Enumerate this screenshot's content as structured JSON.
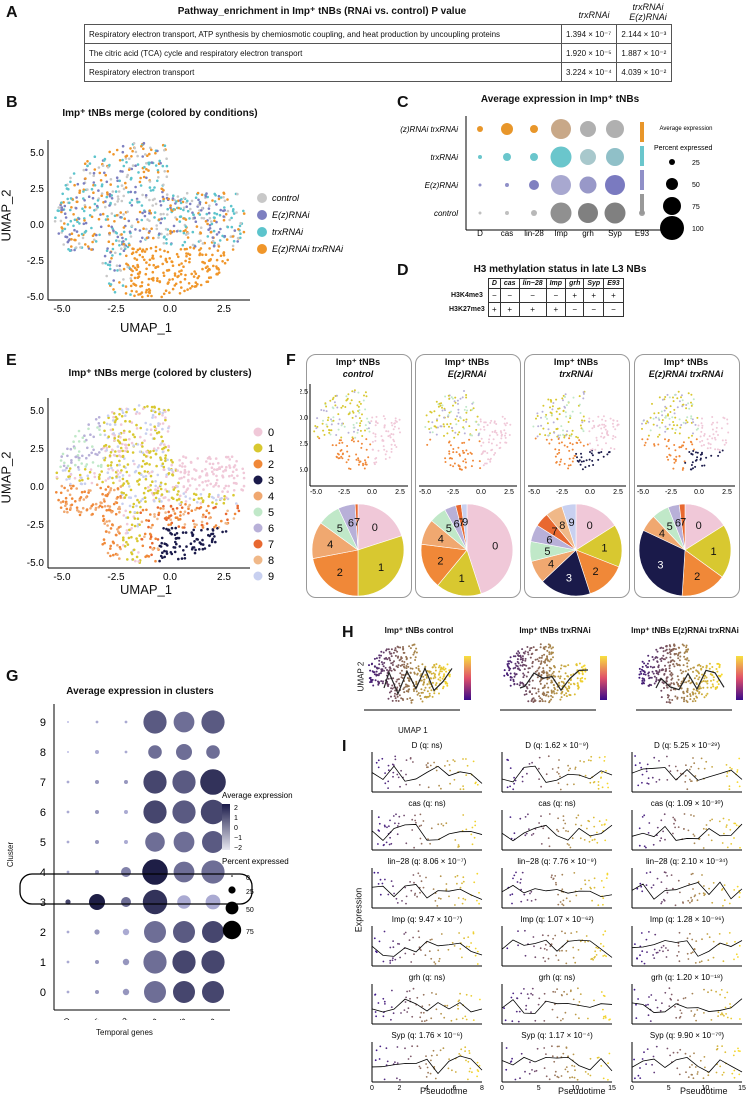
{
  "panels": {
    "a": "A",
    "b": "B",
    "c": "C",
    "d": "D",
    "e": "E",
    "f": "F",
    "g": "G",
    "h": "H",
    "i": "I"
  },
  "panelA": {
    "header_col1": "Pathway_enrichment in Imp⁺ tNBs (RNAi vs. control) P value",
    "header_col2": "trxRNAi",
    "header_col3": "trxRNAi E(z)RNAi",
    "rows": [
      {
        "pathway": "Respiratory electron transport, ATP synthesis by chemiosmotic coupling, and heat production by uncoupling proteins",
        "trx": "1.394 × 10⁻⁷",
        "trxez": "2.144 × 10⁻³"
      },
      {
        "pathway": "The citric acid (TCA) cycle and respiratory electron transport",
        "trx": "1.920 × 10⁻⁵",
        "trxez": "1.887 × 10⁻²"
      },
      {
        "pathway": "Respiratory electron transport",
        "trx": "3.224 × 10⁻⁴",
        "trxez": "4.039 × 10⁻²"
      }
    ]
  },
  "panelB": {
    "title": "Imp⁺ tNBs merge (colored by conditions)",
    "xlabel": "UMAP_1",
    "ylabel": "UMAP_2",
    "xticks": [
      "-5.0",
      "-2.5",
      "0.0",
      "2.5"
    ],
    "yticks": [
      "5.0",
      "2.5",
      "0.0",
      "-2.5",
      "-5.0"
    ],
    "legend": [
      {
        "label": "control",
        "color": "#c8c8c8"
      },
      {
        "label": "E(z)RNAi",
        "color": "#7d7fc0"
      },
      {
        "label": "trxRNAi",
        "color": "#5cc4cc"
      },
      {
        "label": "E(z)RNAi trxRNAi",
        "color": "#f0962a"
      }
    ]
  },
  "panelC": {
    "title": "Average expression in Imp⁺ tNBs",
    "rows": [
      "E(z)RNAi trxRNAi",
      "trxRNAi",
      "E(z)RNAi",
      "control"
    ],
    "cols": [
      "D",
      "cas",
      "lin-28",
      "Imp",
      "grh",
      "Syp",
      "E93"
    ],
    "legend_avg": "Average expression",
    "legend_pct": "Percent expressed",
    "pct_ticks": [
      "25",
      "50",
      "75",
      "100"
    ]
  },
  "panelD": {
    "title": "H3 methylation status in late L3 NBs",
    "cols": [
      "D",
      "cas",
      "lin−28",
      "Imp",
      "grh",
      "Syp",
      "E93"
    ],
    "rows": [
      {
        "label": "H3K4me3",
        "vals": [
          "−",
          "−",
          "−",
          "−",
          "+",
          "+",
          "+"
        ]
      },
      {
        "label": "H3K27me3",
        "vals": [
          "+",
          "+",
          "+",
          "+",
          "−",
          "−",
          "−"
        ]
      }
    ]
  },
  "panelE": {
    "title": "Imp⁺ tNBs merge (colored by clusters)",
    "xlabel": "UMAP_1",
    "ylabel": "UMAP_2",
    "xticks": [
      "-5.0",
      "-2.5",
      "0.0",
      "2.5"
    ],
    "yticks": [
      "5.0",
      "2.5",
      "0.0",
      "-2.5",
      "-5.0"
    ],
    "clusters": [
      "0",
      "1",
      "2",
      "3",
      "4",
      "5",
      "6",
      "7",
      "8",
      "9"
    ],
    "colors": [
      "#f0c8d8",
      "#d8c830",
      "#f08838",
      "#1a1a4a",
      "#f0a870",
      "#c0e8c8",
      "#b8b0d8",
      "#e86830",
      "#f0b888",
      "#c8d0f0"
    ]
  },
  "panelF": {
    "xticks": [
      "-5.0",
      "-2.5",
      "0.0",
      "2.5"
    ],
    "yticks": [
      "2.5",
      "0.0",
      "-2.5",
      "-5.0"
    ],
    "conditions": [
      {
        "l1": "Imp⁺ tNBs",
        "l2": "control"
      },
      {
        "l1": "Imp⁺ tNBs",
        "l2": "E(z)RNAi"
      },
      {
        "l1": "Imp⁺ tNBs",
        "l2": "trxRNAi"
      },
      {
        "l1": "Imp⁺ tNBs",
        "l2": "E(z)RNAi trxRNAi"
      }
    ]
  },
  "chart_data": [
    {
      "type": "pie",
      "title": "Imp⁺ tNBs control",
      "categories": [
        "0",
        "1",
        "2",
        "4",
        "5",
        "6",
        "7"
      ],
      "values": [
        20,
        30,
        22,
        13,
        8,
        6,
        1
      ]
    },
    {
      "type": "pie",
      "title": "Imp⁺ tNBs E(z)RNAi",
      "categories": [
        "0",
        "1",
        "2",
        "4",
        "5",
        "6",
        "7",
        "9"
      ],
      "values": [
        45,
        16,
        16,
        9,
        6,
        4,
        2,
        2
      ]
    },
    {
      "type": "pie",
      "title": "Imp⁺ tNBs trxRNAi",
      "categories": [
        "0",
        "1",
        "2",
        "3",
        "4",
        "5",
        "6",
        "7",
        "8",
        "9"
      ],
      "values": [
        16,
        15,
        14,
        18,
        8,
        7,
        6,
        5,
        6,
        5
      ]
    },
    {
      "type": "pie",
      "title": "Imp⁺ tNBs E(z)RNAi trxRNAi",
      "categories": [
        "0",
        "1",
        "2",
        "3",
        "4",
        "5",
        "6",
        "7"
      ],
      "values": [
        16,
        19,
        16,
        31,
        6,
        6,
        4,
        2
      ]
    }
  ],
  "panelG": {
    "title": "Average expression in clusters",
    "ylabel": "Cluster",
    "xlabel": "Temporal genes",
    "genes": [
      "D",
      "cas",
      "lin-28",
      "Imp",
      "grh",
      "Syp"
    ],
    "clusters": [
      "9",
      "8",
      "7",
      "6",
      "5",
      "4",
      "3",
      "2",
      "1",
      "0"
    ],
    "legend_avg": "Average expression",
    "avg_ticks": [
      "2",
      "1",
      "0",
      "−1",
      "−2"
    ],
    "legend_pct": "Percent expressed",
    "pct_ticks": [
      "0",
      "25",
      "50",
      "75"
    ]
  },
  "panelH": {
    "titles": [
      "Imp⁺ tNBs control",
      "Imp⁺ tNBs trxRNAi",
      "Imp⁺ tNBs E(z)RNAi trxRNAi"
    ],
    "xlabel": "UMAP 1",
    "ylabel": "UMAP 2"
  },
  "panelI": {
    "ylabel": "Expression",
    "xlabel": "Pseudotime",
    "rows": [
      [
        "D (q: ns)",
        "D (q: 1.62 × 10⁻⁹)",
        "D (q: 5.25 × 10⁻²⁹)"
      ],
      [
        "cas (q: ns)",
        "cas (q: ns)",
        "cas (q: 1.09 × 10⁻³⁰)"
      ],
      [
        "lin−28 (q: 8.06 × 10⁻⁷)",
        "lin−28 (q: 7.76 × 10⁻⁹)",
        "lin−28 (q: 2.10 × 10⁻³⁴)"
      ],
      [
        "Imp (q: 9.47 × 10⁻⁷)",
        "Imp (q: 1.07 × 10⁻⁶²)",
        "Imp (q: 1.28 × 10⁻⁹⁶)"
      ],
      [
        "grh (q: ns)",
        "grh (q: ns)",
        "grh (q: 1.20 × 10⁻¹⁸)"
      ],
      [
        "Syp (q: 1.76 × 10⁻⁶)",
        "Syp (q: 1.17 × 10⁻⁴)",
        "Syp (q: 9.90 × 10⁻⁷⁰)"
      ]
    ],
    "xticks": [
      [
        "0",
        "2",
        "4",
        "6",
        "8"
      ],
      [
        "0",
        "5",
        "10",
        "15"
      ],
      [
        "0",
        "5",
        "10",
        "15"
      ]
    ]
  }
}
